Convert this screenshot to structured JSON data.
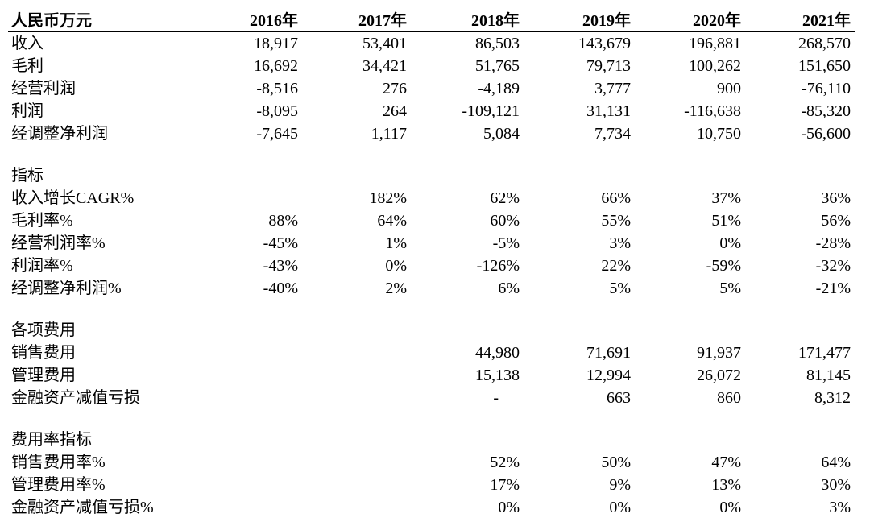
{
  "page": {
    "background": "#ffffff",
    "text_color": "#000000",
    "rule_color": "#000000"
  },
  "table": {
    "unit_label": "人民币万元",
    "columns": [
      "2016年",
      "2017年",
      "2018年",
      "2019年",
      "2020年",
      "2021年"
    ],
    "sections": [
      {
        "rows": [
          {
            "label": "收入",
            "values": [
              "18,917",
              "53,401",
              "86,503",
              "143,679",
              "196,881",
              "268,570"
            ]
          },
          {
            "label": "毛利",
            "values": [
              "16,692",
              "34,421",
              "51,765",
              "79,713",
              "100,262",
              "151,650"
            ]
          },
          {
            "label": "经营利润",
            "values": [
              "-8,516",
              "276",
              "-4,189",
              "3,777",
              "900",
              "-76,110"
            ]
          },
          {
            "label": "利润",
            "values": [
              "-8,095",
              "264",
              "-109,121",
              "31,131",
              "-116,638",
              "-85,320"
            ]
          },
          {
            "label": "经调整净利润",
            "values": [
              "-7,645",
              "1,117",
              "5,084",
              "7,734",
              "10,750",
              "-56,600"
            ]
          }
        ]
      },
      {
        "header": "指标",
        "rows": [
          {
            "label": "收入增长CAGR%",
            "values": [
              "",
              "182%",
              "62%",
              "66%",
              "37%",
              "36%"
            ]
          },
          {
            "label": "毛利率%",
            "values": [
              "88%",
              "64%",
              "60%",
              "55%",
              "51%",
              "56%"
            ]
          },
          {
            "label": "经营利润率%",
            "values": [
              "-45%",
              "1%",
              "-5%",
              "3%",
              "0%",
              "-28%"
            ]
          },
          {
            "label": "利润率%",
            "values": [
              "-43%",
              "0%",
              "-126%",
              "22%",
              "-59%",
              "-32%"
            ]
          },
          {
            "label": "经调整净利润%",
            "values": [
              "-40%",
              "2%",
              "6%",
              "5%",
              "5%",
              "-21%"
            ]
          }
        ]
      },
      {
        "header": "各项费用",
        "rows": [
          {
            "label": "销售费用",
            "values": [
              "",
              "",
              "44,980",
              "71,691",
              "91,937",
              "171,477"
            ]
          },
          {
            "label": "管理费用",
            "values": [
              "",
              "",
              "15,138",
              "12,994",
              "26,072",
              "81,145"
            ]
          },
          {
            "label": "金融资产减值亏损",
            "values": [
              "",
              "",
              "-",
              "663",
              "860",
              "8,312"
            ]
          }
        ]
      },
      {
        "header": "费用率指标",
        "rows": [
          {
            "label": "销售费用率%",
            "values": [
              "",
              "",
              "52%",
              "50%",
              "47%",
              "64%"
            ]
          },
          {
            "label": "管理费用率%",
            "values": [
              "",
              "",
              "17%",
              "9%",
              "13%",
              "30%"
            ]
          },
          {
            "label": "金融资产减值亏损%",
            "values": [
              "",
              "",
              "0%",
              "0%",
              "0%",
              "3%"
            ]
          }
        ]
      }
    ]
  }
}
